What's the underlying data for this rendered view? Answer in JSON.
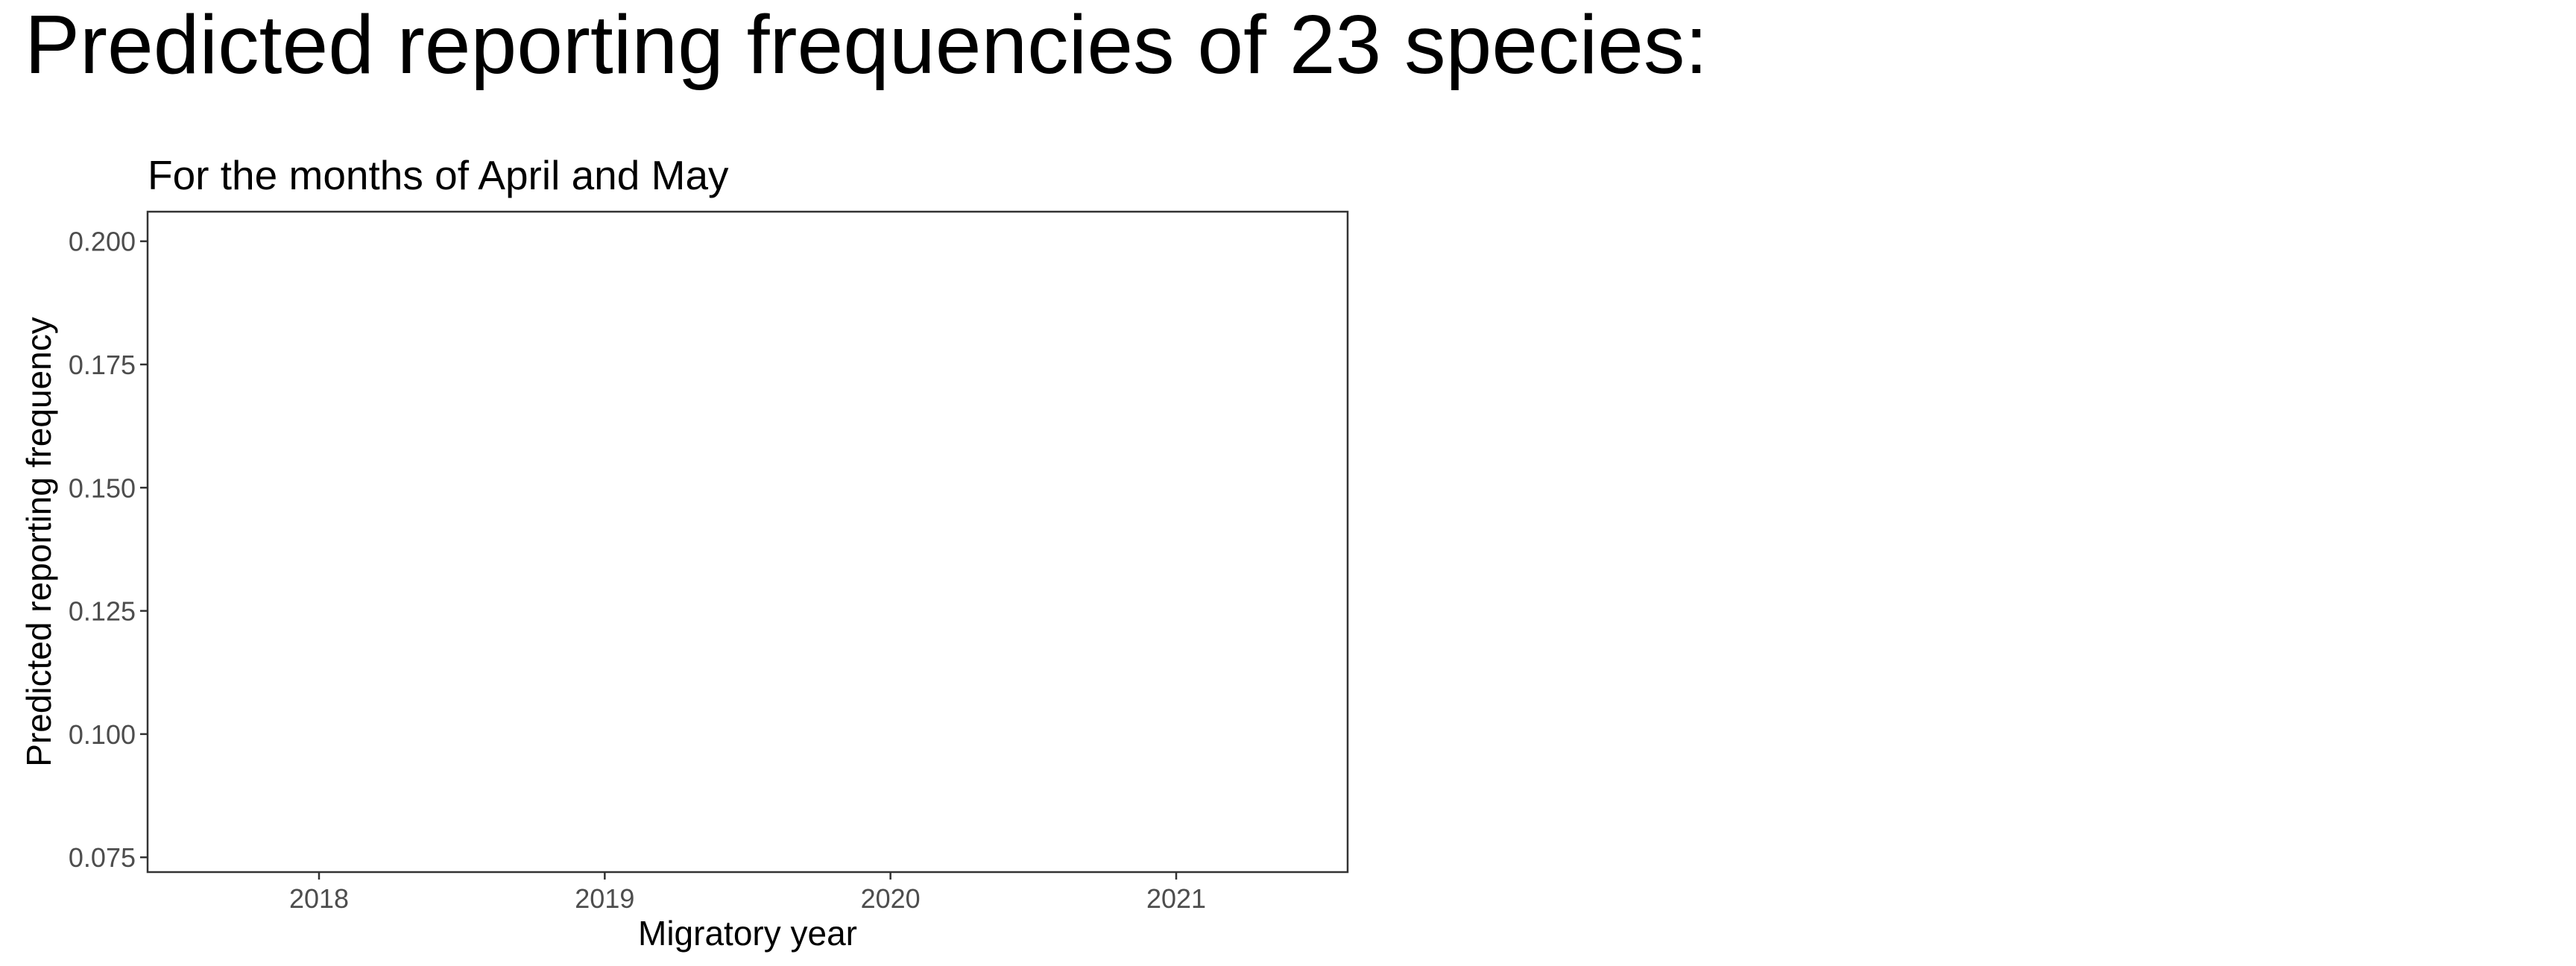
{
  "page": {
    "title": "Predicted reporting frequencies of 23 species:"
  },
  "chart_data": {
    "type": "line",
    "title": "For the months of April and May",
    "xlabel": "Migratory year",
    "ylabel": "Predicted reporting frequency",
    "x_ticks": [
      "2018",
      "2019",
      "2020",
      "2021"
    ],
    "x_tick_values": [
      2018,
      2019,
      2020,
      2021
    ],
    "y_ticks": [
      "0.075",
      "0.100",
      "0.125",
      "0.150",
      "0.175",
      "0.200"
    ],
    "y_tick_values": [
      0.075,
      0.1,
      0.125,
      0.15,
      0.175,
      0.2
    ],
    "xlim": [
      2017.4,
      2021.6
    ],
    "ylim": [
      0.072,
      0.206
    ],
    "grid": false,
    "series": []
  }
}
